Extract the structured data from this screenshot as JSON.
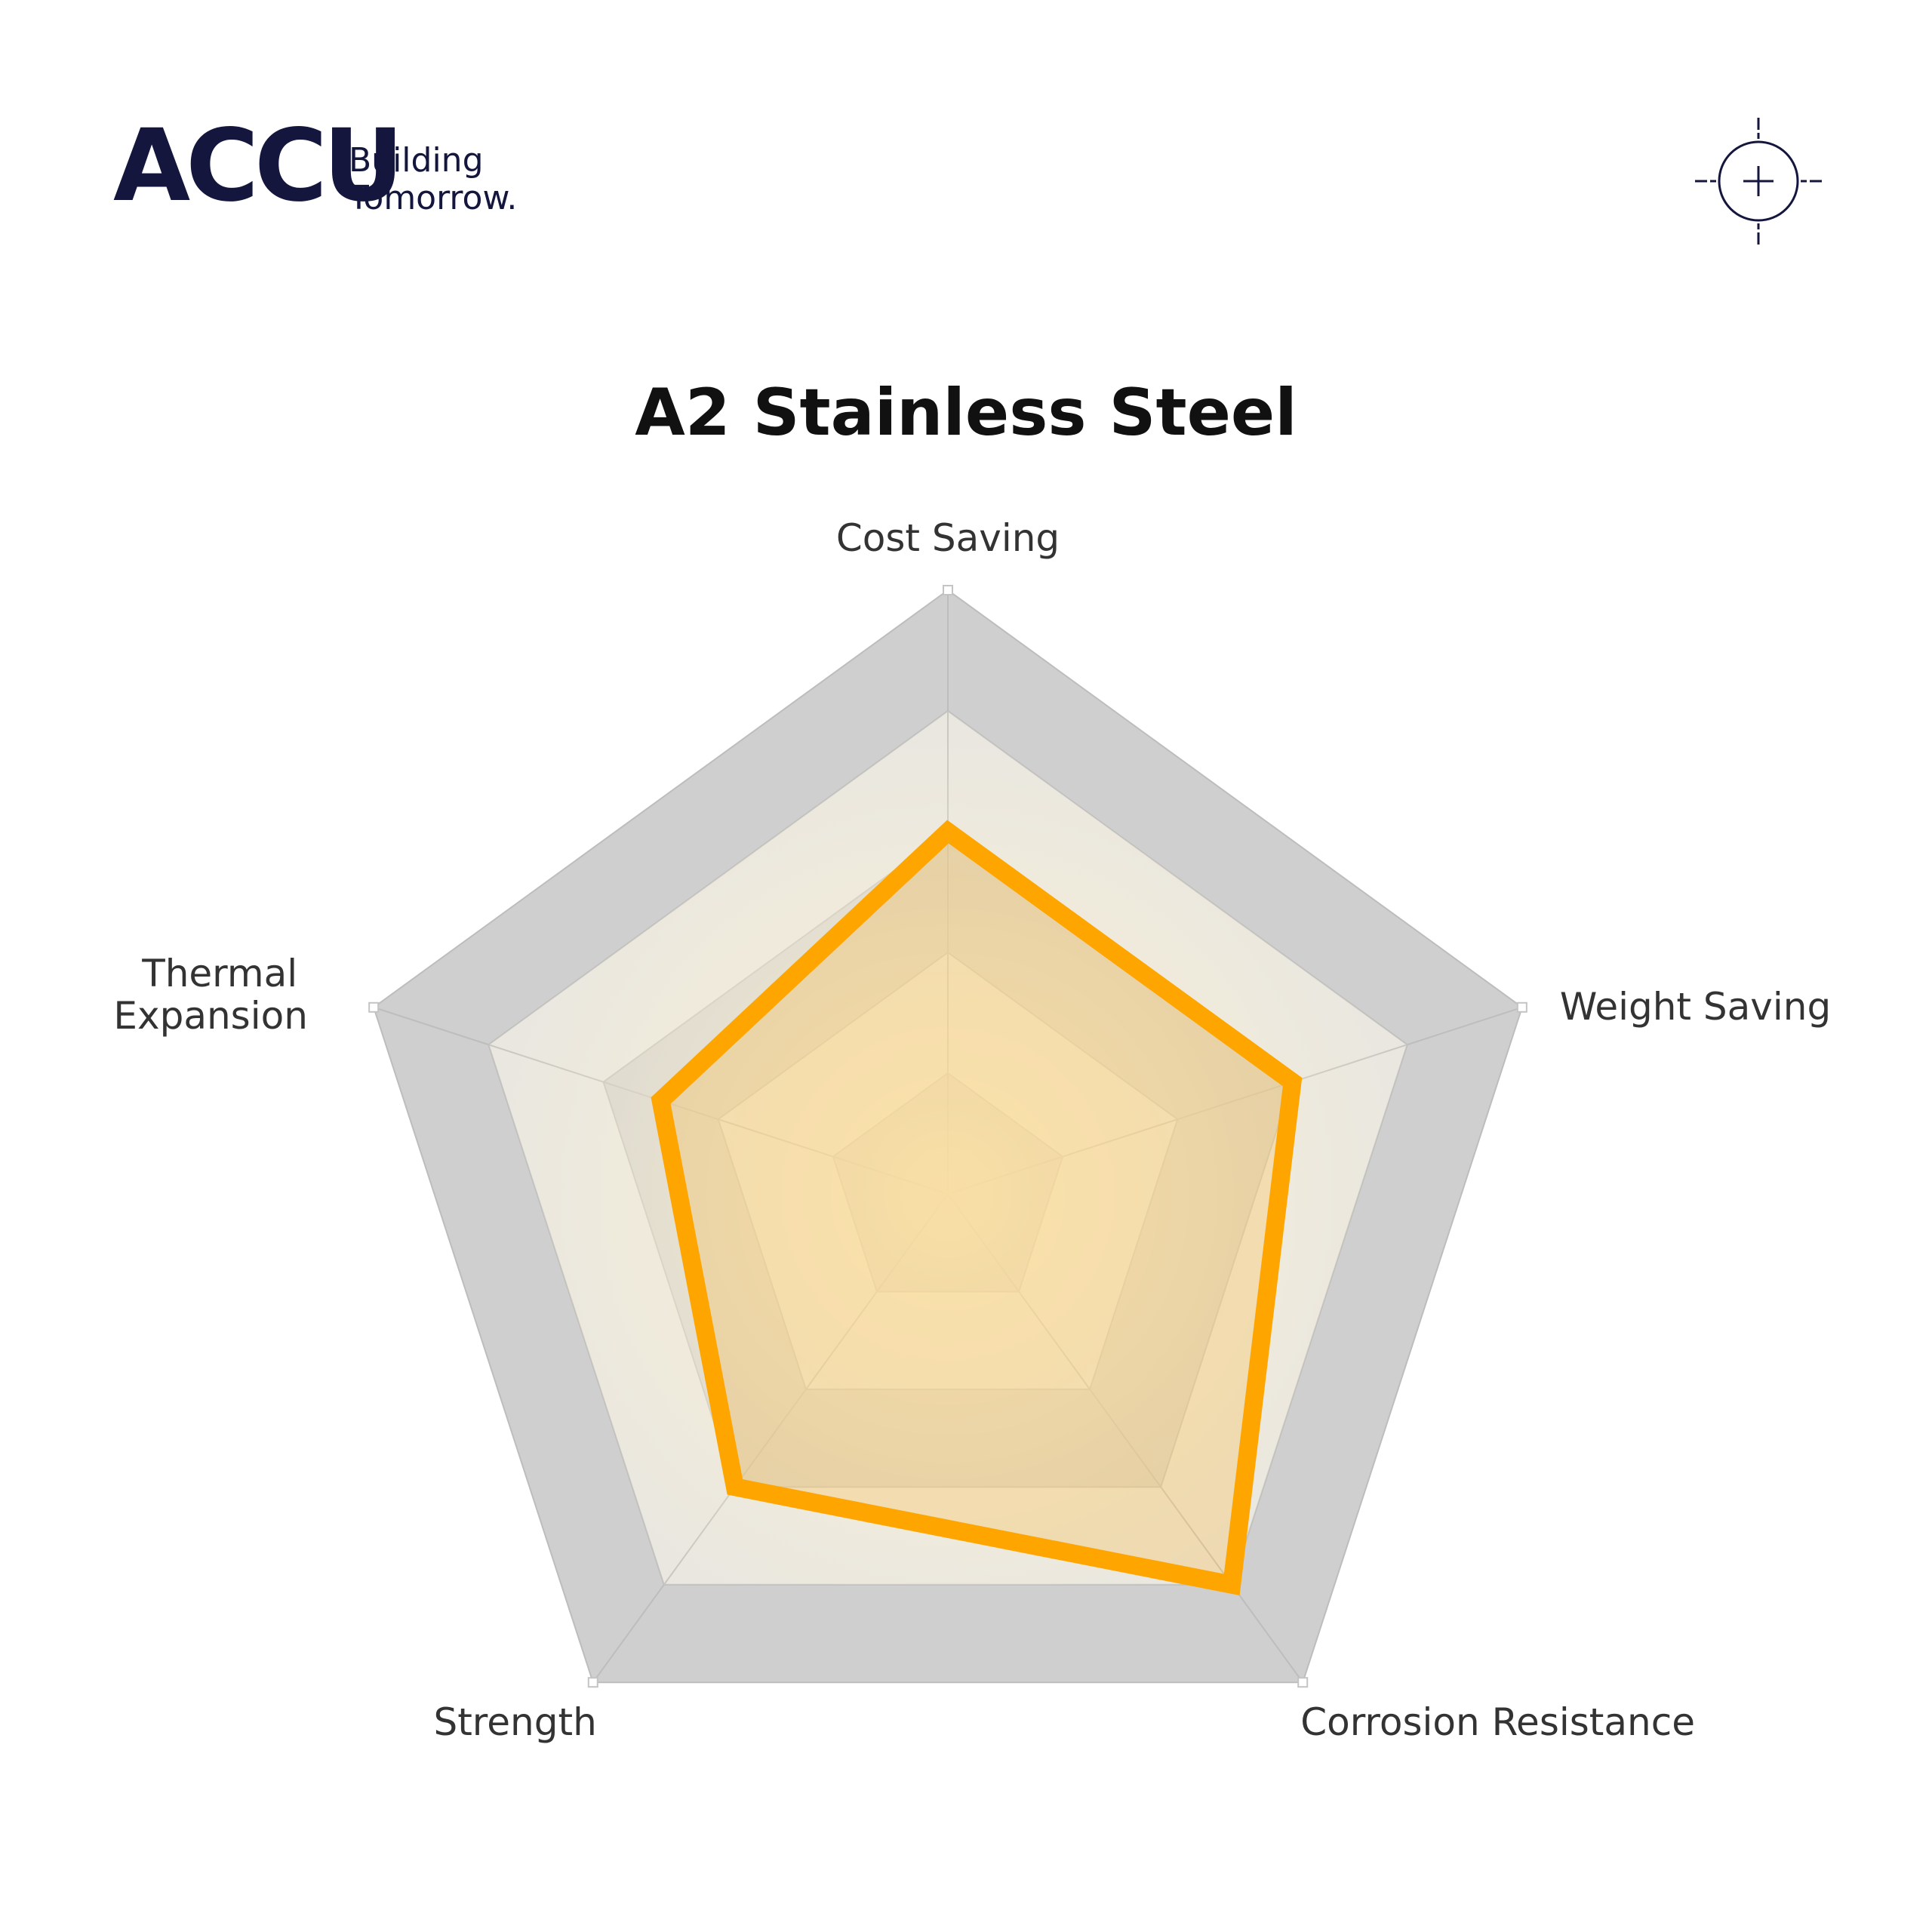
{
  "brand": {
    "logo_text": "ACCU",
    "tagline_line1": "Building",
    "tagline_line2": "Tomorrow.",
    "color": "#14163d"
  },
  "header_icon": "crosshair-icon",
  "chart_data": {
    "type": "radar",
    "title": "A2 Stainless Steel",
    "axes": [
      "Cost Saving",
      "Weight Saving",
      "Corrosion Resistance",
      "Strength",
      "Thermal Expansion"
    ],
    "scale_levels": 5,
    "range": [
      0,
      5
    ],
    "series": [
      {
        "values": [
          3,
          3,
          4,
          3,
          2.5
        ],
        "color": "#ffa500"
      }
    ],
    "grid_colors": [
      "#cfcfcf",
      "#e4e4e4"
    ]
  }
}
